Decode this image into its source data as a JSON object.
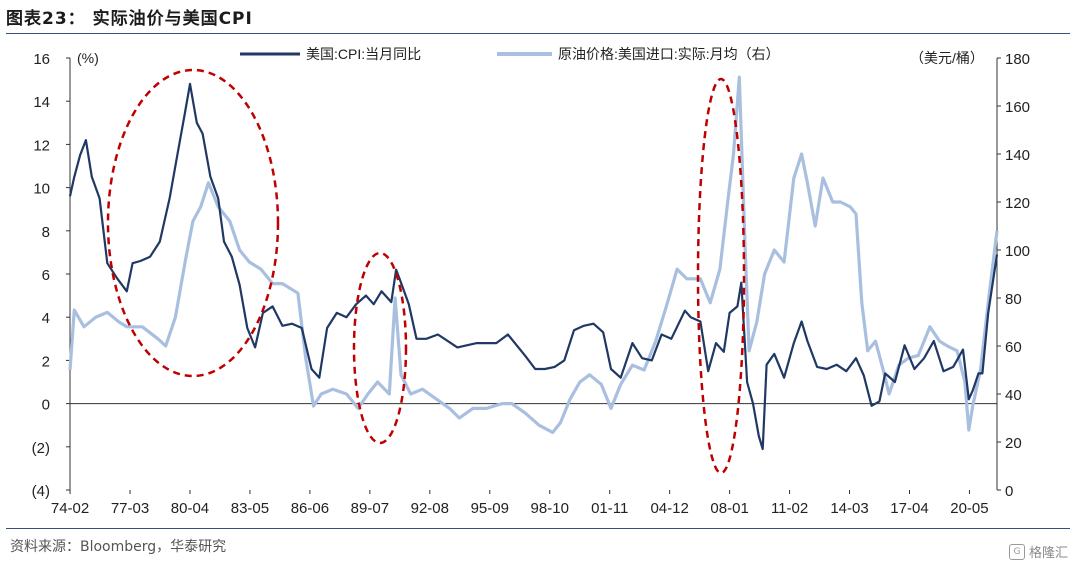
{
  "header": {
    "title": "图表23： 实际油价与美国CPI"
  },
  "footer": {
    "source": "资料来源：Bloomberg，华泰研究",
    "watermark": "格隆汇"
  },
  "chart_data": {
    "type": "line",
    "left_axis": {
      "unit_label": "(%)",
      "ylim": [
        -4,
        16
      ],
      "tick_labels": [
        "16",
        "14",
        "12",
        "10",
        "8",
        "6",
        "4",
        "2",
        "0",
        "(2)",
        "(4)"
      ],
      "tick_values": [
        16,
        14,
        12,
        10,
        8,
        6,
        4,
        2,
        0,
        -2,
        -4
      ]
    },
    "right_axis": {
      "unit_label": "（美元/桶）",
      "ylim": [
        0,
        180
      ],
      "tick_labels": [
        "180",
        "160",
        "140",
        "120",
        "100",
        "80",
        "60",
        "40",
        "20",
        "0"
      ],
      "tick_values": [
        180,
        160,
        140,
        120,
        100,
        80,
        60,
        40,
        20,
        0
      ]
    },
    "x_tick_labels": [
      "74-02",
      "77-03",
      "80-04",
      "83-05",
      "86-06",
      "89-07",
      "92-08",
      "95-09",
      "98-10",
      "01-11",
      "04-12",
      "08-01",
      "11-02",
      "14-03",
      "17-04",
      "20-05"
    ],
    "x_range": [
      1974.08,
      2021.75
    ],
    "legend_position": "top-center",
    "series": [
      {
        "name": "美国:CPI:当月同比",
        "axis": "left",
        "color": "#1f3864",
        "x": [
          1974.08,
          1974.3,
          1974.6,
          1974.9,
          1975.2,
          1975.6,
          1976.0,
          1976.5,
          1977.0,
          1977.3,
          1977.7,
          1978.2,
          1978.7,
          1979.2,
          1979.6,
          1980.0,
          1980.25,
          1980.6,
          1980.9,
          1981.3,
          1981.7,
          1982.0,
          1982.4,
          1982.8,
          1983.2,
          1983.6,
          1984.0,
          1984.5,
          1985.0,
          1985.5,
          1986.0,
          1986.5,
          1986.9,
          1987.3,
          1987.8,
          1988.3,
          1988.8,
          1989.3,
          1989.7,
          1990.1,
          1990.6,
          1990.85,
          1991.1,
          1991.5,
          1991.9,
          1992.4,
          1993.0,
          1994.0,
          1995.0,
          1996.0,
          1996.6,
          1997.5,
          1998.0,
          1998.5,
          1999.0,
          1999.5,
          2000.0,
          2000.5,
          2001.0,
          2001.5,
          2001.9,
          2002.4,
          2003.0,
          2003.5,
          2004.0,
          2004.5,
          2005.0,
          2005.7,
          2006.0,
          2006.5,
          2006.9,
          2007.3,
          2007.7,
          2008.0,
          2008.4,
          2008.6,
          2008.9,
          2009.2,
          2009.5,
          2009.7,
          2009.9,
          2010.3,
          2010.8,
          2011.3,
          2011.7,
          2012.0,
          2012.5,
          2013.0,
          2013.5,
          2014.0,
          2014.5,
          2014.9,
          2015.3,
          2015.7,
          2016.0,
          2016.5,
          2017.0,
          2017.5,
          2018.0,
          2018.5,
          2019.0,
          2019.5,
          2020.0,
          2020.3,
          2020.5,
          2020.8,
          2021.0,
          2021.3,
          2021.5,
          2021.75
        ],
        "y": [
          9.6,
          10.5,
          11.5,
          12.2,
          10.5,
          9.5,
          6.5,
          5.8,
          5.2,
          6.5,
          6.6,
          6.8,
          7.5,
          9.5,
          11.5,
          13.5,
          14.8,
          13.0,
          12.5,
          10.5,
          9.5,
          7.5,
          6.8,
          5.5,
          3.5,
          2.6,
          4.2,
          4.5,
          3.6,
          3.7,
          3.5,
          1.6,
          1.2,
          3.5,
          4.2,
          4.0,
          4.6,
          5.0,
          4.6,
          5.2,
          4.7,
          6.2,
          5.6,
          4.6,
          3.0,
          3.0,
          3.2,
          2.6,
          2.8,
          2.8,
          3.2,
          2.2,
          1.6,
          1.6,
          1.7,
          2.0,
          3.4,
          3.6,
          3.7,
          3.3,
          1.6,
          1.2,
          2.8,
          2.1,
          2.0,
          3.2,
          3.0,
          4.3,
          4.0,
          3.8,
          1.5,
          2.8,
          2.4,
          4.2,
          4.5,
          5.6,
          1.0,
          0.0,
          -1.5,
          -2.1,
          1.8,
          2.3,
          1.2,
          2.8,
          3.8,
          2.9,
          1.7,
          1.6,
          1.8,
          1.5,
          2.1,
          1.3,
          -0.1,
          0.1,
          1.4,
          1.0,
          2.7,
          1.6,
          2.1,
          2.9,
          1.5,
          1.7,
          2.5,
          0.2,
          0.6,
          1.4,
          1.4,
          4.2,
          5.4,
          6.9
        ],
        "series_label": "CPI"
      },
      {
        "name": "原油价格:美国进口:实际:月均（右）",
        "axis": "right",
        "color": "#a9bfe0",
        "x": [
          1974.08,
          1974.3,
          1974.8,
          1975.4,
          1976.0,
          1976.6,
          1977.0,
          1977.8,
          1978.6,
          1979.0,
          1979.5,
          1980.0,
          1980.4,
          1980.8,
          1981.2,
          1981.7,
          1982.3,
          1982.8,
          1983.3,
          1983.9,
          1984.5,
          1985.0,
          1985.8,
          1986.2,
          1986.6,
          1987.0,
          1987.6,
          1988.3,
          1988.9,
          1989.4,
          1989.9,
          1990.5,
          1990.8,
          1991.1,
          1991.6,
          1992.2,
          1992.9,
          1993.6,
          1994.1,
          1994.8,
          1995.5,
          1996.3,
          1996.8,
          1997.5,
          1998.2,
          1998.9,
          1999.3,
          1999.8,
          2000.3,
          2000.8,
          2001.4,
          2001.9,
          2002.4,
          2003.0,
          2003.6,
          2004.2,
          2004.8,
          2005.3,
          2005.8,
          2006.5,
          2007.0,
          2007.5,
          2007.9,
          2008.2,
          2008.5,
          2008.8,
          2009.0,
          2009.4,
          2009.8,
          2010.3,
          2010.8,
          2011.3,
          2011.7,
          2012.0,
          2012.4,
          2012.8,
          2013.3,
          2013.7,
          2014.2,
          2014.5,
          2014.8,
          2015.1,
          2015.5,
          2015.9,
          2016.2,
          2016.7,
          2017.2,
          2017.7,
          2018.3,
          2018.8,
          2019.2,
          2019.7,
          2020.1,
          2020.3,
          2020.5,
          2020.9,
          2021.3,
          2021.75
        ],
        "y": [
          50,
          75,
          68,
          72,
          74,
          70,
          68,
          68,
          63,
          60,
          72,
          95,
          112,
          118,
          128,
          118,
          112,
          100,
          95,
          92,
          86,
          86,
          82,
          55,
          35,
          40,
          42,
          40,
          34,
          40,
          45,
          40,
          80,
          48,
          40,
          42,
          38,
          34,
          30,
          34,
          34,
          36,
          36,
          32,
          27,
          24,
          28,
          38,
          45,
          48,
          44,
          34,
          44,
          52,
          50,
          62,
          78,
          92,
          88,
          88,
          78,
          92,
          120,
          140,
          172,
          100,
          58,
          70,
          90,
          100,
          95,
          130,
          140,
          128,
          110,
          130,
          120,
          120,
          118,
          115,
          78,
          58,
          62,
          50,
          40,
          52,
          55,
          56,
          68,
          62,
          60,
          58,
          45,
          25,
          35,
          50,
          78,
          108
        ]
      }
    ]
  }
}
